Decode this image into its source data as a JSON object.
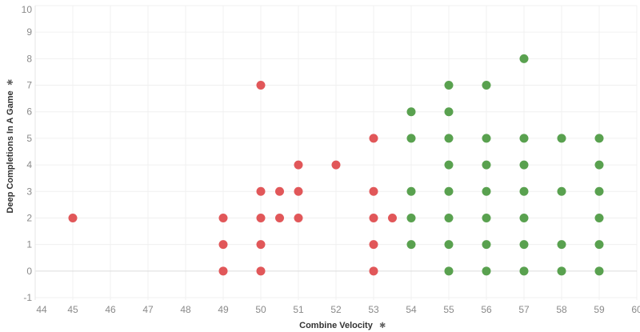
{
  "chart_data": {
    "type": "scatter",
    "title": "",
    "xlabel": "Combine Velocity",
    "ylabel": "Deep Completions In A Game",
    "xlim": [
      44,
      60
    ],
    "ylim": [
      -1,
      10
    ],
    "xticks": [
      "44",
      "45",
      "46",
      "47",
      "48",
      "49",
      "50",
      "51",
      "52",
      "53",
      "54",
      "55",
      "56",
      "57",
      "58",
      "59",
      "60"
    ],
    "yticks": [
      "-1",
      "0",
      "1",
      "2",
      "3",
      "4",
      "5",
      "6",
      "7",
      "8",
      "9",
      "10"
    ],
    "grid": true,
    "series": [
      {
        "name": "red",
        "color": "#e15759",
        "points": [
          [
            45,
            2
          ],
          [
            49,
            2
          ],
          [
            49,
            1
          ],
          [
            49,
            0
          ],
          [
            50,
            7
          ],
          [
            50,
            3
          ],
          [
            50,
            2
          ],
          [
            50,
            1
          ],
          [
            50,
            0
          ],
          [
            50.5,
            3
          ],
          [
            50.5,
            2
          ],
          [
            51,
            4
          ],
          [
            51,
            3
          ],
          [
            51,
            2
          ],
          [
            52,
            4
          ],
          [
            53,
            5
          ],
          [
            53,
            3
          ],
          [
            53,
            2
          ],
          [
            53,
            1
          ],
          [
            53,
            0
          ],
          [
            53.5,
            2
          ]
        ]
      },
      {
        "name": "green",
        "color": "#59a14f",
        "points": [
          [
            54,
            6
          ],
          [
            54,
            5
          ],
          [
            54,
            3
          ],
          [
            54,
            2
          ],
          [
            54,
            1
          ],
          [
            55,
            7
          ],
          [
            55,
            6
          ],
          [
            55,
            5
          ],
          [
            55,
            4
          ],
          [
            55,
            3
          ],
          [
            55,
            2
          ],
          [
            55,
            1
          ],
          [
            55,
            0
          ],
          [
            56,
            7
          ],
          [
            56,
            5
          ],
          [
            56,
            4
          ],
          [
            56,
            3
          ],
          [
            56,
            2
          ],
          [
            56,
            1
          ],
          [
            56,
            0
          ],
          [
            57,
            8
          ],
          [
            57,
            5
          ],
          [
            57,
            4
          ],
          [
            57,
            3
          ],
          [
            57,
            2
          ],
          [
            57,
            1
          ],
          [
            57,
            0
          ],
          [
            58,
            5
          ],
          [
            58,
            3
          ],
          [
            58,
            1
          ],
          [
            58,
            0
          ],
          [
            59,
            5
          ],
          [
            59,
            4
          ],
          [
            59,
            3
          ],
          [
            59,
            2
          ],
          [
            59,
            1
          ],
          [
            59,
            0
          ]
        ]
      }
    ]
  }
}
